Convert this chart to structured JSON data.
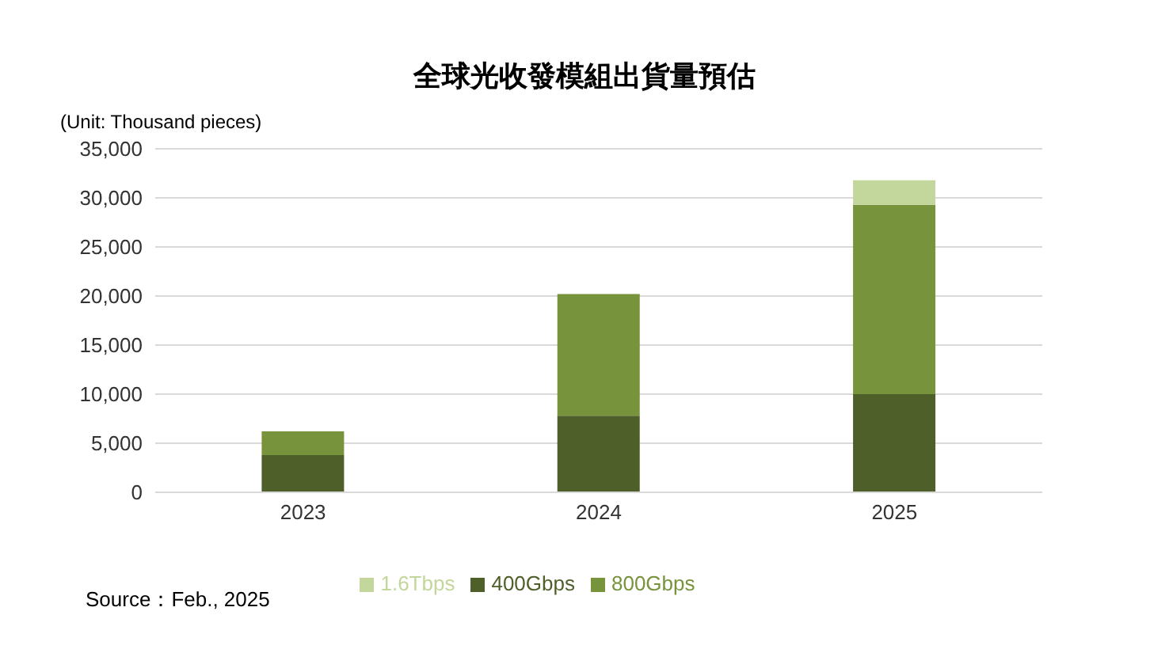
{
  "chart_data": {
    "type": "bar",
    "title": "全球光收發模組出貨量預估",
    "ylabel": "(Unit: Thousand pieces)",
    "categories": [
      "2023",
      "2024",
      "2025"
    ],
    "stacked": true,
    "series": [
      {
        "name": "400Gbps",
        "color": "#4f5f2a",
        "values": [
          3800,
          7800,
          10000
        ]
      },
      {
        "name": "800Gbps",
        "color": "#77933c",
        "values": [
          2400,
          12400,
          19300
        ]
      },
      {
        "name": "1.6Tbps",
        "color": "#c3d69b",
        "values": [
          null,
          null,
          2500
        ]
      }
    ],
    "ylim": [
      0,
      35000
    ],
    "yticks": [
      {
        "value": 0,
        "label": "0"
      },
      {
        "value": 5000,
        "label": "5,000"
      },
      {
        "value": 10000,
        "label": "10,000"
      },
      {
        "value": 15000,
        "label": "15,000"
      },
      {
        "value": 20000,
        "label": "20,000"
      },
      {
        "value": 25000,
        "label": "25,000"
      },
      {
        "value": 30000,
        "label": "30,000"
      },
      {
        "value": 35000,
        "label": "35,000"
      }
    ],
    "grid": "y",
    "legend": "bottom",
    "annotations": [
      "Source：Feb., 2025"
    ]
  }
}
